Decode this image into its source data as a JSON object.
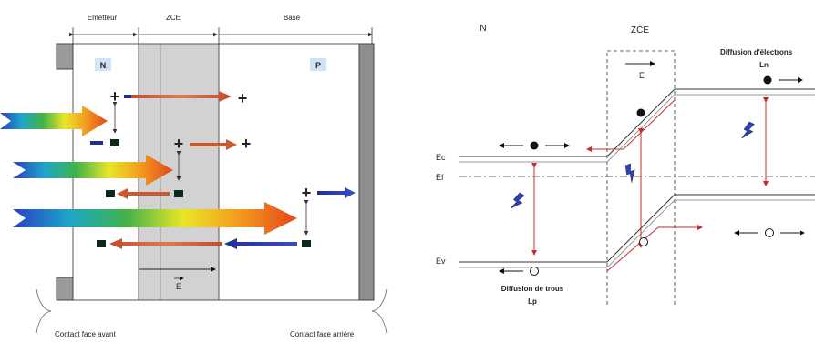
{
  "left_panel": {
    "regions": {
      "emitter": "Emetteur",
      "zce": "ZCE",
      "base": "Base"
    },
    "doping": {
      "n": "N",
      "p": "P"
    },
    "field_label": "E",
    "contacts": {
      "front": "Contact face avant",
      "back": "Contact face arrière"
    }
  },
  "right_panel": {
    "region_n": "N",
    "region_zce": "ZCE",
    "field_label": "E",
    "levels": {
      "ec": "Ec",
      "ef": "Ef",
      "ev": "Ev"
    },
    "electron_diffusion": {
      "title": "Diffusion d'électrons",
      "length": "Ln"
    },
    "hole_diffusion": {
      "title": "Diffusion de trous",
      "length": "Lp"
    }
  },
  "colors": {
    "red_arrow": "#cc2a2a",
    "blue_arrow": "#1f2f9a",
    "zce_fill": "#d2d2d2",
    "light_pink": "#e8a0a0"
  },
  "icons": [
    "plus-carrier-icon",
    "minus-carrier-icon",
    "photon-icon",
    "electron-icon",
    "hole-icon",
    "brace-icon"
  ]
}
